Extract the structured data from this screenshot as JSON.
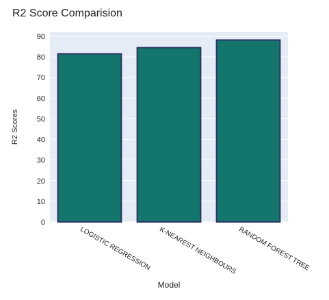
{
  "chart_data": {
    "type": "bar",
    "title": "R2 Score Comparision",
    "xlabel": "Model",
    "ylabel": "R2 Scores",
    "categories": [
      "LOGISTIC REGRESSION",
      "K-NEAREST NEIGHBOURS",
      "RANDOM FOREST TREE"
    ],
    "values": [
      81.5,
      84.5,
      88.2
    ],
    "ylim": [
      0,
      92
    ],
    "yticks": [
      0,
      10,
      20,
      30,
      40,
      50,
      60,
      70,
      80,
      90
    ],
    "grid": true,
    "legend": "none"
  },
  "colors": {
    "bar_fill": "#13756b",
    "bar_stroke": "#2b3565",
    "plot_background": "#e5ecf6",
    "grid": "#ffffff",
    "text": "#222222"
  }
}
